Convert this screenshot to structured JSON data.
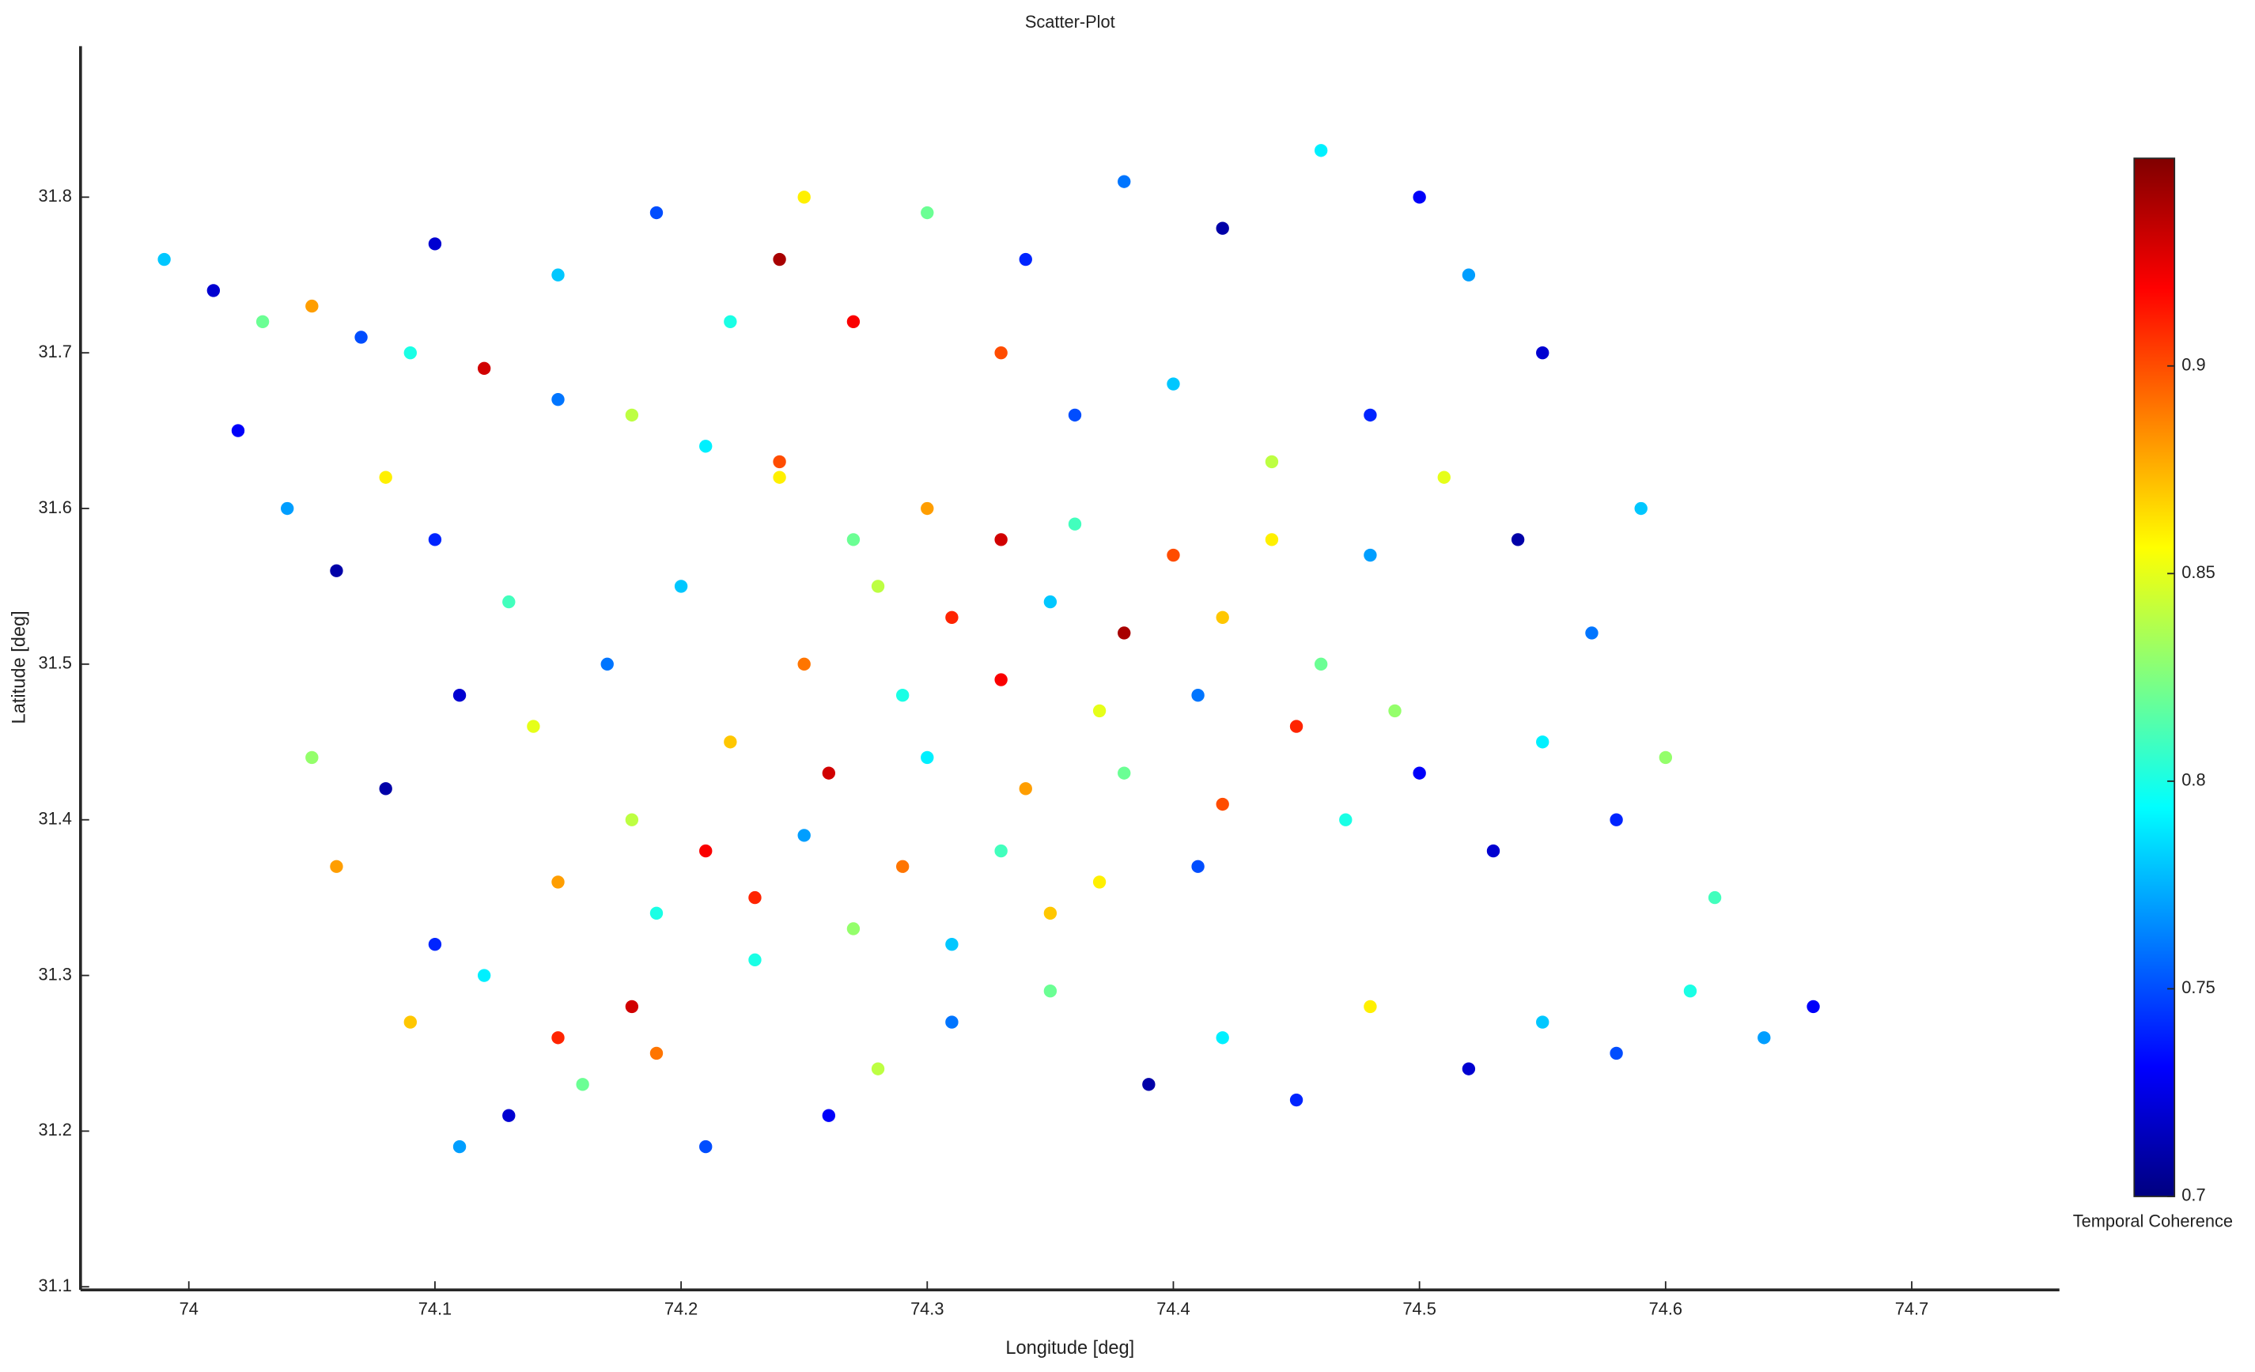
{
  "chart_data": {
    "type": "scatter",
    "title": "Scatter-Plot",
    "x_label": "Longitude [deg]",
    "y_label": "Latitude [deg]",
    "colorbar_label": "Temporal Coherence",
    "colormap": "jet",
    "xlim": [
      73.956,
      74.76
    ],
    "xticks": [
      74,
      74.1,
      74.2,
      74.3,
      74.4,
      74.5,
      74.6,
      74.7
    ],
    "ylim": [
      31.098,
      31.897
    ],
    "yticks": [
      31.1,
      31.2,
      31.3,
      31.4,
      31.5,
      31.6,
      31.7,
      31.8
    ],
    "clim": [
      0.7,
      0.95
    ],
    "cticks": [
      0.7,
      0.75,
      0.8,
      0.85,
      0.9
    ],
    "x": [
      73.99,
      74.01,
      74.03,
      74.05,
      74.07,
      74.09,
      74.12,
      74.15,
      74.18,
      74.21,
      74.24,
      74.02,
      74.04,
      74.06,
      74.08,
      74.1,
      74.13,
      74.11,
      74.14,
      74.17,
      74.2,
      74.05,
      74.08,
      74.06,
      74.1,
      74.09,
      74.12,
      74.15,
      74.11,
      74.13,
      74.16,
      74.19,
      74.21,
      74.18,
      74.23,
      74.26,
      74.28,
      74.31,
      74.35,
      74.39,
      74.42,
      74.45,
      74.48,
      74.52,
      74.55,
      74.58,
      74.61,
      74.64,
      74.66,
      74.62,
      74.58,
      74.55,
      74.53,
      74.6,
      74.57,
      74.54,
      74.59,
      74.51,
      74.48,
      74.55,
      74.52,
      74.5,
      74.46,
      74.42,
      74.38,
      74.34,
      74.3,
      74.27,
      74.25,
      74.24,
      74.22,
      74.33,
      74.36,
      74.4,
      74.44,
      74.19,
      74.15,
      74.1,
      74.3,
      74.33,
      74.36,
      74.4,
      74.44,
      74.48,
      74.28,
      74.31,
      74.35,
      74.38,
      74.42,
      74.46,
      74.25,
      74.29,
      74.33,
      74.37,
      74.41,
      74.45,
      74.49,
      74.22,
      74.26,
      74.3,
      74.34,
      74.38,
      74.42,
      74.18,
      74.21,
      74.25,
      74.29,
      74.33,
      74.37,
      74.41,
      74.15,
      74.19,
      74.23,
      74.27,
      74.31,
      74.35,
      74.47,
      74.5,
      74.27,
      74.24
    ],
    "values": [
      31.76,
      31.74,
      31.72,
      31.73,
      31.71,
      31.7,
      31.69,
      31.67,
      31.66,
      31.64,
      31.63,
      31.65,
      31.6,
      31.56,
      31.62,
      31.58,
      31.54,
      31.48,
      31.46,
      31.5,
      31.55,
      31.44,
      31.42,
      31.37,
      31.32,
      31.27,
      31.3,
      31.26,
      31.19,
      31.21,
      31.23,
      31.25,
      31.19,
      31.28,
      31.31,
      31.21,
      31.24,
      31.27,
      31.29,
      31.23,
      31.26,
      31.22,
      31.28,
      31.24,
      31.27,
      31.25,
      31.29,
      31.26,
      31.28,
      31.35,
      31.4,
      31.45,
      31.38,
      31.44,
      31.52,
      31.58,
      31.6,
      31.62,
      31.66,
      31.7,
      31.75,
      31.8,
      31.83,
      31.78,
      31.81,
      31.76,
      31.79,
      31.72,
      31.8,
      31.76,
      31.72,
      31.7,
      31.66,
      31.68,
      31.63,
      31.79,
      31.75,
      31.77,
      31.6,
      31.58,
      31.59,
      31.57,
      31.58,
      31.57,
      31.55,
      31.53,
      31.54,
      31.52,
      31.53,
      31.5,
      31.5,
      31.48,
      31.49,
      31.47,
      31.48,
      31.46,
      31.47,
      31.45,
      31.43,
      31.44,
      31.42,
      31.43,
      31.41,
      31.4,
      31.38,
      31.39,
      31.37,
      31.38,
      31.36,
      31.37,
      31.36,
      31.34,
      31.35,
      31.33,
      31.32,
      31.34,
      31.4,
      31.43,
      31.58,
      31.62
    ],
    "color_values": [
      0.78,
      0.72,
      0.82,
      0.88,
      0.75,
      0.8,
      0.93,
      0.76,
      0.84,
      0.79,
      0.9,
      0.73,
      0.77,
      0.71,
      0.86,
      0.74,
      0.81,
      0.72,
      0.85,
      0.76,
      0.78,
      0.83,
      0.71,
      0.88,
      0.74,
      0.87,
      0.79,
      0.91,
      0.77,
      0.72,
      0.82,
      0.89,
      0.75,
      0.93,
      0.8,
      0.73,
      0.84,
      0.76,
      0.82,
      0.71,
      0.79,
      0.74,
      0.86,
      0.72,
      0.78,
      0.75,
      0.8,
      0.77,
      0.73,
      0.81,
      0.74,
      0.79,
      0.72,
      0.83,
      0.76,
      0.71,
      0.78,
      0.85,
      0.74,
      0.72,
      0.77,
      0.73,
      0.79,
      0.71,
      0.76,
      0.74,
      0.82,
      0.92,
      0.86,
      0.94,
      0.8,
      0.9,
      0.75,
      0.78,
      0.84,
      0.75,
      0.78,
      0.72,
      0.88,
      0.93,
      0.81,
      0.9,
      0.86,
      0.77,
      0.84,
      0.91,
      0.78,
      0.94,
      0.87,
      0.82,
      0.89,
      0.8,
      0.92,
      0.85,
      0.76,
      0.91,
      0.83,
      0.87,
      0.93,
      0.79,
      0.88,
      0.82,
      0.9,
      0.84,
      0.92,
      0.77,
      0.89,
      0.81,
      0.86,
      0.75,
      0.88,
      0.8,
      0.91,
      0.83,
      0.78,
      0.87,
      0.8,
      0.73,
      0.82,
      0.86
    ]
  }
}
